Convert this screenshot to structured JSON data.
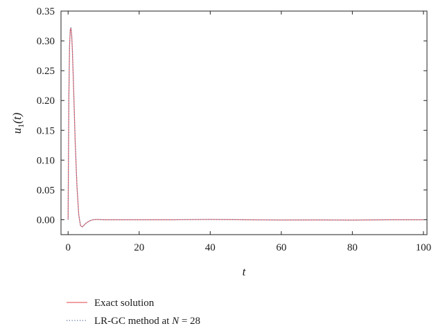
{
  "chart_data": {
    "type": "line",
    "xlabel": "t",
    "ylabel_main": "u",
    "ylabel_sub": "1",
    "ylabel_arg": "(t)",
    "xlim": [
      -2,
      101
    ],
    "ylim": [
      -0.025,
      0.35
    ],
    "x_ticks": [
      0,
      20,
      40,
      60,
      80,
      100
    ],
    "y_ticks": [
      0.0,
      0.05,
      0.1,
      0.15,
      0.2,
      0.25,
      0.3,
      0.35
    ],
    "x_tick_labels": [
      "0",
      "20",
      "40",
      "60",
      "80",
      "100"
    ],
    "y_tick_labels": [
      "0.00",
      "0.05",
      "0.10",
      "0.15",
      "0.20",
      "0.25",
      "0.30",
      "0.35"
    ],
    "grid": false,
    "legend_placement": "below",
    "series": [
      {
        "name": "Exact solution",
        "style": "solid",
        "color": "#e8686e",
        "x": [
          0,
          0.2,
          0.4,
          0.6,
          0.8,
          1.0,
          1.2,
          1.5,
          2.0,
          2.5,
          3.0,
          3.5,
          4.0,
          4.5,
          5.0,
          6.0,
          7.0,
          8.0,
          10,
          15,
          20,
          30,
          40,
          50,
          60,
          70,
          80,
          90,
          100
        ],
        "y": [
          0.0,
          0.2,
          0.29,
          0.318,
          0.322,
          0.31,
          0.285,
          0.23,
          0.13,
          0.055,
          0.008,
          -0.01,
          -0.012,
          -0.009,
          -0.006,
          -0.002,
          0.0,
          0.0005,
          0.0,
          0.0,
          0.0,
          0.0,
          0.0005,
          0.0,
          -0.0005,
          -0.0003,
          -0.0006,
          0.0,
          0.0
        ]
      },
      {
        "name_prefix": "LR-GC method at ",
        "name_var": "N",
        "name_suffix": " = 28",
        "style": "dotted",
        "color": "#6f7fa8",
        "x": [
          0,
          0.2,
          0.4,
          0.6,
          0.8,
          1.0,
          1.2,
          1.5,
          2.0,
          2.5,
          3.0,
          3.5,
          4.0,
          4.5,
          5.0,
          6.0,
          7.0,
          8.0,
          10,
          15,
          20,
          30,
          40,
          50,
          60,
          70,
          80,
          90,
          100
        ],
        "y": [
          0.0,
          0.2,
          0.29,
          0.318,
          0.322,
          0.31,
          0.285,
          0.23,
          0.13,
          0.055,
          0.008,
          -0.01,
          -0.012,
          -0.009,
          -0.006,
          -0.002,
          0.0,
          0.0005,
          0.0,
          0.0,
          0.0,
          0.0,
          0.0005,
          0.0,
          -0.0005,
          -0.0003,
          -0.0006,
          0.0,
          0.0
        ]
      }
    ]
  }
}
